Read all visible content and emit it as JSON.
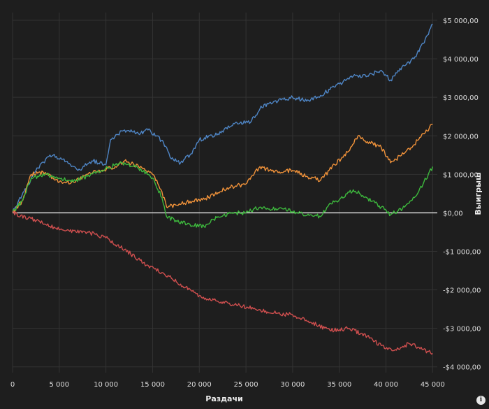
{
  "chart_data": {
    "type": "line",
    "xlabel": "Раздачи",
    "ylabel": "Выигрыш",
    "xlim": [
      0,
      45500
    ],
    "ylim": [
      -4150,
      5200
    ],
    "x_ticks": [
      0,
      5000,
      10000,
      15000,
      20000,
      25000,
      30000,
      35000,
      40000,
      45000
    ],
    "x_tick_labels": [
      "0",
      "5 000",
      "10 000",
      "15 000",
      "20 000",
      "25 000",
      "30 000",
      "35 000",
      "40 000",
      "45 000"
    ],
    "y_ticks": [
      5000,
      4000,
      3000,
      2000,
      1000,
      0,
      -1000,
      -2000,
      -3000,
      -4000
    ],
    "y_tick_labels": [
      "$5 000,00",
      "$4 000,00",
      "$3 000,00",
      "$2 000,00",
      "$1 000,00",
      "$0,00",
      "-$1 000,00",
      "-$2 000,00",
      "-$3 000,00",
      "-$4 000,00"
    ],
    "grid": true,
    "zero_line": true,
    "series": [
      {
        "color": "#4f86c6",
        "x": [
          0,
          1000,
          2500,
          4000,
          5500,
          7000,
          8500,
          10000,
          10500,
          12000,
          13500,
          14500,
          15500,
          16500,
          17000,
          18000,
          19000,
          20000,
          22000,
          24000,
          25500,
          26500,
          27500,
          29000,
          30000,
          31500,
          33000,
          34000,
          35000,
          36500,
          38000,
          39500,
          40500,
          41500,
          43000,
          44000,
          45000
        ],
        "y": [
          0,
          450,
          1100,
          1500,
          1400,
          1100,
          1350,
          1250,
          1900,
          2150,
          2050,
          2150,
          2000,
          1700,
          1400,
          1300,
          1500,
          1900,
          2050,
          2350,
          2350,
          2700,
          2850,
          2950,
          3000,
          2900,
          3050,
          3200,
          3350,
          3550,
          3550,
          3700,
          3450,
          3750,
          4000,
          4400,
          4900
        ]
      },
      {
        "color": "#f0923a",
        "x": [
          0,
          1000,
          2000,
          3500,
          5000,
          6500,
          8000,
          9500,
          11000,
          12000,
          13500,
          15000,
          16000,
          16500,
          17500,
          19000,
          21000,
          23000,
          25000,
          26500,
          28000,
          30000,
          31500,
          33000,
          34500,
          36000,
          37000,
          38000,
          39500,
          40500,
          42000,
          43500,
          45000
        ],
        "y": [
          0,
          300,
          1000,
          1050,
          800,
          800,
          1000,
          1100,
          1200,
          1350,
          1200,
          1000,
          550,
          150,
          200,
          300,
          400,
          650,
          750,
          1200,
          1050,
          1100,
          950,
          850,
          1250,
          1600,
          2000,
          1850,
          1700,
          1300,
          1550,
          1900,
          2300
        ]
      },
      {
        "color": "#3db83d",
        "x": [
          0,
          1000,
          2000,
          3500,
          5000,
          6500,
          8000,
          9500,
          11000,
          12000,
          13500,
          15000,
          16000,
          16500,
          17500,
          19000,
          20500,
          22000,
          23500,
          25000,
          26500,
          27500,
          29000,
          30500,
          32000,
          33000,
          34000,
          35500,
          36500,
          37500,
          38500,
          39500,
          40500,
          42000,
          43500,
          45000
        ],
        "y": [
          0,
          300,
          900,
          1000,
          900,
          800,
          950,
          1100,
          1250,
          1300,
          1150,
          900,
          400,
          -100,
          -200,
          -300,
          -350,
          -100,
          0,
          0,
          150,
          100,
          100,
          0,
          -50,
          -100,
          250,
          400,
          600,
          450,
          300,
          150,
          -50,
          150,
          550,
          1200
        ]
      },
      {
        "color": "#d04f4f",
        "x": [
          0,
          2000,
          4000,
          6000,
          8000,
          10000,
          12000,
          14000,
          16000,
          18000,
          20000,
          22000,
          24000,
          26000,
          28000,
          30000,
          32000,
          34000,
          36000,
          38000,
          39500,
          41000,
          42500,
          44000,
          45000
        ],
        "y": [
          0,
          -150,
          -350,
          -450,
          -500,
          -650,
          -950,
          -1300,
          -1550,
          -1850,
          -2150,
          -2300,
          -2400,
          -2500,
          -2600,
          -2650,
          -2850,
          -3050,
          -3000,
          -3200,
          -3450,
          -3550,
          -3400,
          -3550,
          -3650
        ]
      }
    ]
  }
}
